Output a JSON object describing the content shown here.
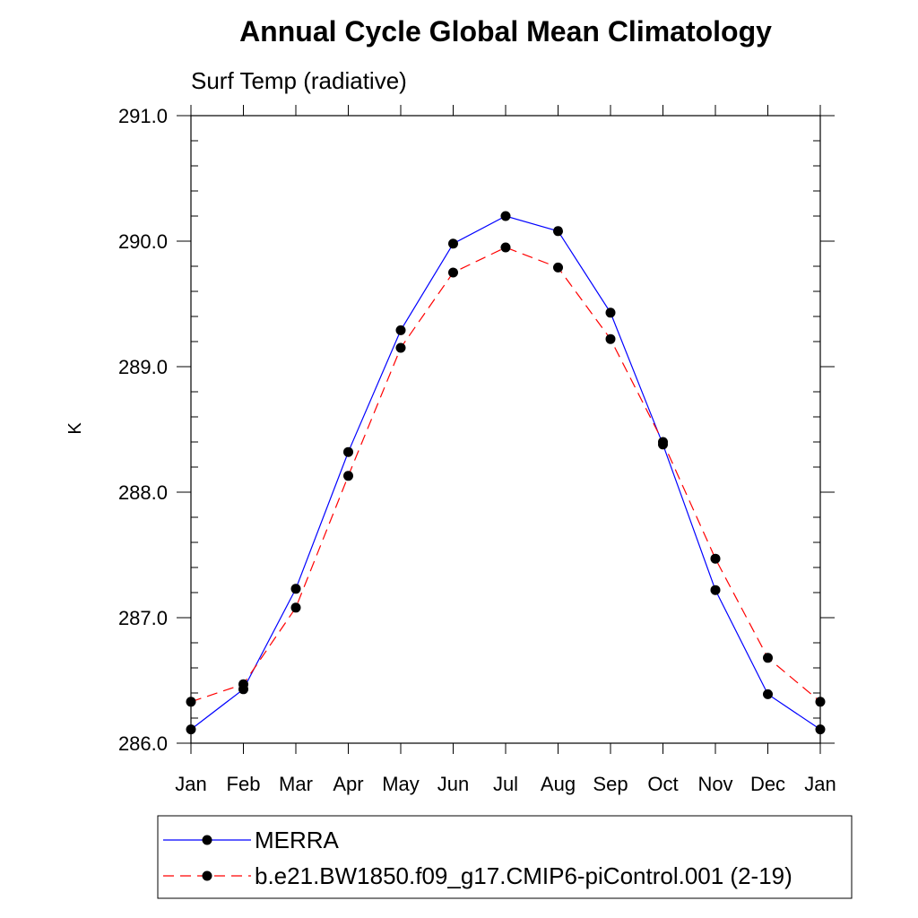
{
  "chart_data": {
    "type": "line",
    "title": "Annual Cycle Global Mean Climatology",
    "subtitle": "Surf Temp (radiative)",
    "ylabel": "K",
    "xlabel": "",
    "categories": [
      "Jan",
      "Feb",
      "Mar",
      "Apr",
      "May",
      "Jun",
      "Jul",
      "Aug",
      "Sep",
      "Oct",
      "Nov",
      "Dec",
      "Jan"
    ],
    "ylim": [
      286.0,
      291.0
    ],
    "yticks": [
      286.0,
      287.0,
      288.0,
      289.0,
      290.0,
      291.0
    ],
    "ytick_labels": [
      "286.0",
      "287.0",
      "288.0",
      "289.0",
      "290.0",
      "291.0"
    ],
    "minor_ytick_step": 0.2,
    "grid": false,
    "legend_position": "bottom",
    "series": [
      {
        "name": "MERRA",
        "color": "#0000ff",
        "line_style": "solid",
        "marker": "filled-circle",
        "values": [
          286.11,
          286.43,
          287.23,
          288.32,
          289.29,
          289.98,
          290.2,
          290.08,
          289.43,
          288.38,
          287.22,
          286.39,
          286.11
        ]
      },
      {
        "name": "b.e21.BW1850.f09_g17.CMIP6-piControl.001 (2-19)",
        "color": "#ff0000",
        "line_style": "dashed",
        "marker": "filled-circle",
        "values": [
          286.33,
          286.47,
          287.08,
          288.13,
          289.15,
          289.75,
          289.95,
          289.79,
          289.22,
          288.4,
          287.47,
          286.68,
          286.33
        ]
      }
    ]
  }
}
